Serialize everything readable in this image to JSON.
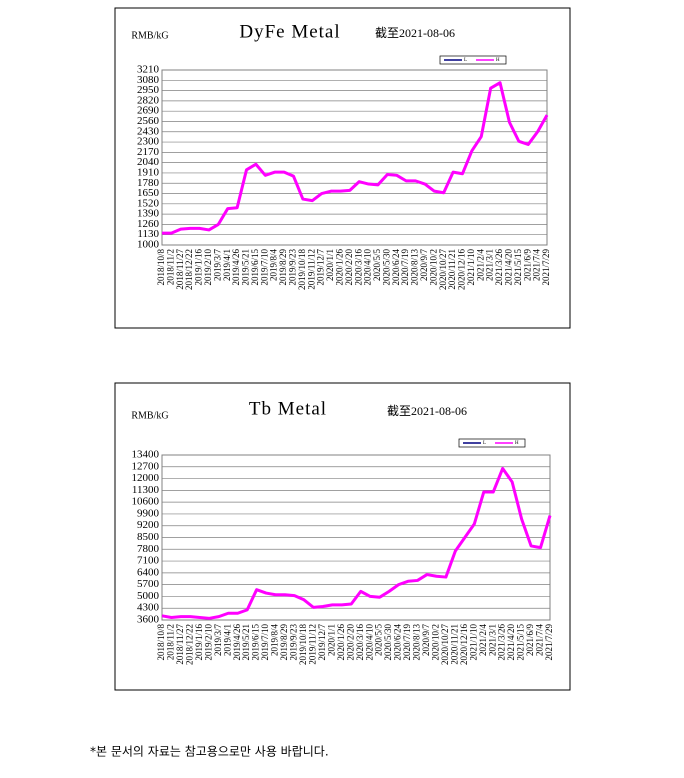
{
  "chart_data": [
    {
      "type": "line",
      "title": "DyFe Metal",
      "subtitle": "截至2021-08-06",
      "unit": "RMB/kG",
      "categories": [
        "2018/10/8",
        "2018/11/2",
        "2018/11/27",
        "2018/12/22",
        "2019/1/16",
        "2019/2/10",
        "2019/3/7",
        "2019/4/1",
        "2019/4/26",
        "2019/5/21",
        "2019/6/15",
        "2019/7/10",
        "2019/8/4",
        "2019/8/29",
        "2019/9/23",
        "2019/10/18",
        "2019/11/12",
        "2019/12/7",
        "2020/1/1",
        "2020/1/26",
        "2020/2/20",
        "2020/3/16",
        "2020/4/10",
        "2020/5/5",
        "2020/5/30",
        "2020/6/24",
        "2020/7/19",
        "2020/8/13",
        "2020/9/7",
        "2020/10/2",
        "2020/10/27",
        "2020/11/21",
        "2020/12/16",
        "2021/1/10",
        "2021/2/4",
        "2021/3/1",
        "2021/3/26",
        "2021/4/20",
        "2021/5/15",
        "2021/6/9",
        "2021/7/4",
        "2021/7/29"
      ],
      "series": [
        {
          "name": "L",
          "color": "#000080",
          "values": [
            1150,
            1150,
            1200,
            1210,
            1210,
            1190,
            1260,
            1460,
            1470,
            1950,
            2020,
            1880,
            1920,
            1920,
            1870,
            1580,
            1560,
            1650,
            1680,
            1680,
            1690,
            1800,
            1770,
            1760,
            1890,
            1880,
            1810,
            1810,
            1770,
            1680,
            1660,
            1920,
            1900,
            2190,
            2370,
            2980,
            3050,
            2550,
            2310,
            2270,
            2430,
            2640
          ]
        },
        {
          "name": "H",
          "color": "#ff00ff",
          "values": [
            1150,
            1150,
            1200,
            1210,
            1210,
            1190,
            1260,
            1460,
            1470,
            1950,
            2020,
            1880,
            1920,
            1920,
            1870,
            1580,
            1560,
            1650,
            1680,
            1680,
            1690,
            1800,
            1770,
            1760,
            1890,
            1880,
            1810,
            1810,
            1770,
            1680,
            1660,
            1920,
            1900,
            2190,
            2370,
            2980,
            3050,
            2550,
            2310,
            2270,
            2430,
            2640
          ]
        }
      ],
      "ylim": [
        1000,
        3210
      ],
      "yticks": [
        1000,
        1130,
        1260,
        1390,
        1520,
        1650,
        1780,
        1910,
        2040,
        2170,
        2300,
        2430,
        2560,
        2690,
        2820,
        2950,
        3080,
        3210
      ],
      "grid": true,
      "legend": "top-right"
    },
    {
      "type": "line",
      "title": "Tb Metal",
      "subtitle": "截至2021-08-06",
      "unit": "RMB/kG",
      "categories": [
        "2018/10/8",
        "2018/11/2",
        "2018/11/27",
        "2018/12/22",
        "2019/1/16",
        "2019/2/10",
        "2019/3/7",
        "2019/4/1",
        "2019/4/26",
        "2019/5/21",
        "2019/6/15",
        "2019/7/10",
        "2019/8/4",
        "2019/8/29",
        "2019/9/23",
        "2019/10/18",
        "2019/11/12",
        "2019/12/7",
        "2020/1/1",
        "2020/1/26",
        "2020/2/20",
        "2020/3/16",
        "2020/4/10",
        "2020/5/5",
        "2020/5/30",
        "2020/6/24",
        "2020/7/19",
        "2020/8/13",
        "2020/9/7",
        "2020/10/2",
        "2020/10/27",
        "2020/11/21",
        "2020/12/16",
        "2021/1/10",
        "2021/2/4",
        "2021/3/1",
        "2021/3/26",
        "2021/4/20",
        "2021/5/15",
        "2021/6/9",
        "2021/7/4",
        "2021/7/29"
      ],
      "series": [
        {
          "name": "L",
          "color": "#000080",
          "values": [
            3850,
            3750,
            3800,
            3800,
            3750,
            3700,
            3800,
            4000,
            4000,
            4200,
            5400,
            5200,
            5100,
            5100,
            5050,
            4800,
            4350,
            4400,
            4500,
            4500,
            4550,
            5300,
            5000,
            4950,
            5300,
            5700,
            5900,
            5950,
            6300,
            6200,
            6150,
            7700,
            8500,
            9300,
            11200,
            11200,
            12600,
            11800,
            9600,
            8000,
            7900,
            9800
          ]
        },
        {
          "name": "H",
          "color": "#ff00ff",
          "values": [
            3850,
            3750,
            3800,
            3800,
            3750,
            3700,
            3800,
            4000,
            4000,
            4200,
            5400,
            5200,
            5100,
            5100,
            5050,
            4800,
            4350,
            4400,
            4500,
            4500,
            4550,
            5300,
            5000,
            4950,
            5300,
            5700,
            5900,
            5950,
            6300,
            6200,
            6150,
            7700,
            8500,
            9300,
            11200,
            11200,
            12600,
            11800,
            9600,
            8000,
            7900,
            9800
          ]
        }
      ],
      "ylim": [
        3600,
        13400
      ],
      "yticks": [
        3600,
        4300,
        5000,
        5700,
        6400,
        7100,
        7800,
        8500,
        9200,
        9900,
        10600,
        11300,
        12000,
        12700,
        13400
      ],
      "grid": true,
      "legend": "top-right"
    }
  ],
  "footnote": "*본 문서의 자료는 참고용으로만 사용 바랍니다."
}
